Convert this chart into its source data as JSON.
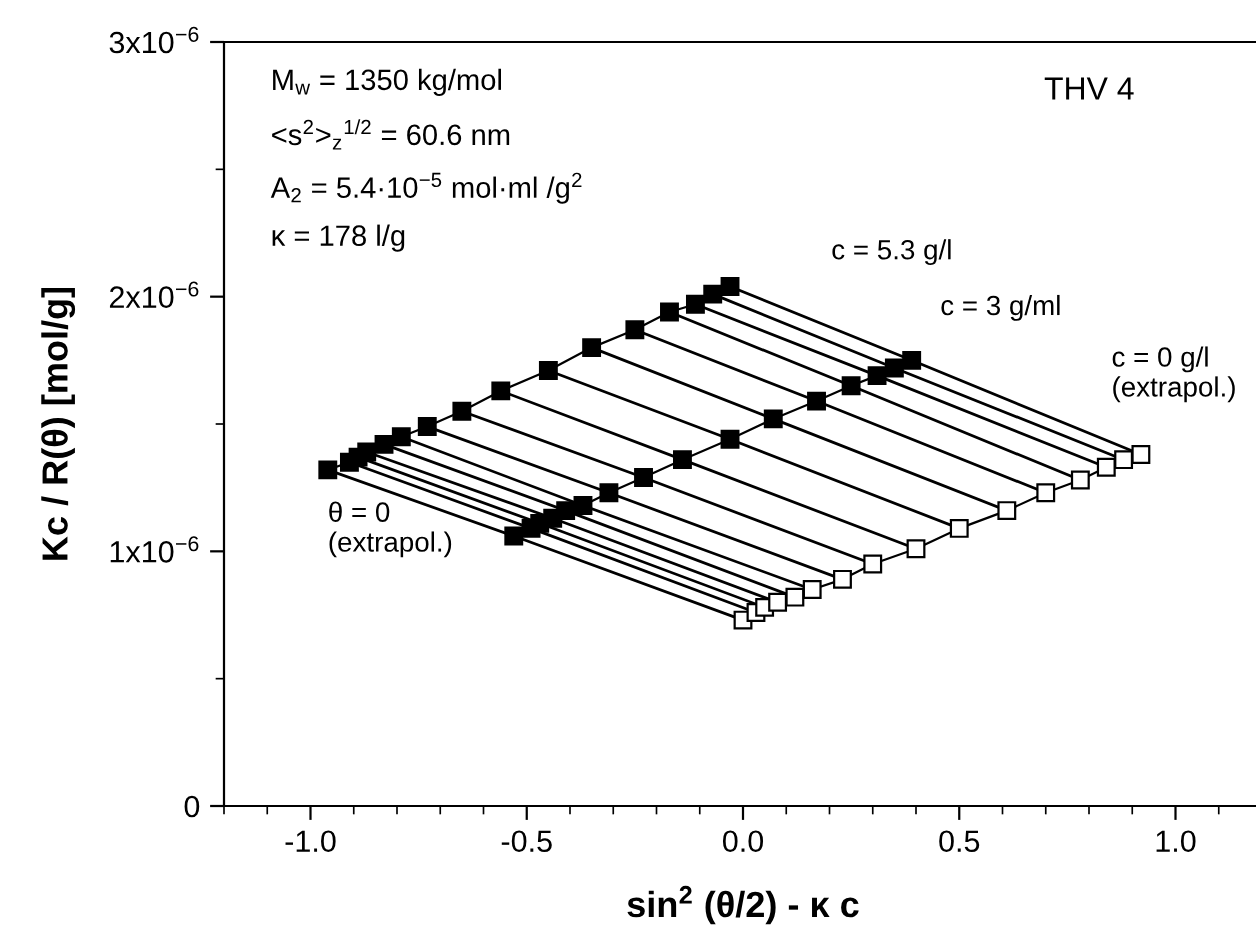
{
  "chart_data": {
    "type": "line",
    "xlabel": "sin$^{2}$ (θ/2) - κ c",
    "ylabel": "Kc / R(θ) [mol/g]",
    "xlim": [
      -1.2,
      1.2
    ],
    "xticks": [
      {
        "value": -1.0,
        "label": "-1.0"
      },
      {
        "value": -0.5,
        "label": "-0.5"
      },
      {
        "value": 0.0,
        "label": "0.0"
      },
      {
        "value": 0.5,
        "label": "0.5"
      },
      {
        "value": 1.0,
        "label": "1.0"
      }
    ],
    "ylim": [
      0,
      3e-06
    ],
    "yticks": [
      0,
      {
        "value": 1e-06,
        "label": "1x10$^{−6}$"
      },
      {
        "value": 2e-06,
        "label": "2x10$^{−6}$"
      },
      {
        "value": 3e-06,
        "label": "3x10$^{−6}$"
      }
    ],
    "series": [
      {
        "marker": "square",
        "color": "#000000",
        "x": [
          -0.96,
          -0.91,
          -0.89,
          -0.87,
          -0.83,
          -0.79,
          -0.73,
          -0.65,
          -0.56,
          -0.45,
          -0.35,
          -0.25,
          -0.17,
          -0.11,
          -0.07,
          -0.03
        ],
        "values": [
          1.32e-06,
          1.35e-06,
          1.37e-06,
          1.39e-06,
          1.42e-06,
          1.45e-06,
          1.49e-06,
          1.55e-06,
          1.63e-06,
          1.71e-06,
          1.8e-06,
          1.87e-06,
          1.94e-06,
          1.97e-06,
          2.01e-06,
          2.04e-06
        ]
      },
      {
        "marker": "square",
        "color": "#000000",
        "x": [
          -0.53,
          -0.49,
          -0.47,
          -0.44,
          -0.41,
          -0.37,
          -0.31,
          -0.23,
          -0.14,
          -0.03,
          0.07,
          0.17,
          0.25,
          0.31,
          0.35,
          0.39
        ],
        "values": [
          1.06e-06,
          1.09e-06,
          1.11e-06,
          1.13e-06,
          1.16e-06,
          1.18e-06,
          1.23e-06,
          1.29e-06,
          1.36e-06,
          1.44e-06,
          1.52e-06,
          1.59e-06,
          1.65e-06,
          1.69e-06,
          1.72e-06,
          1.75e-06
        ]
      },
      {
        "marker": "square",
        "color": "#ffffff",
        "x": [
          0.0,
          0.03,
          0.05,
          0.08,
          0.12,
          0.16,
          0.23,
          0.3,
          0.4,
          0.5,
          0.61,
          0.7,
          0.78,
          0.84,
          0.88,
          0.92
        ],
        "values": [
          7.3e-07,
          7.6e-07,
          7.8e-07,
          8e-07,
          8.2e-07,
          8.5e-07,
          8.9e-07,
          9.5e-07,
          1.01e-06,
          1.09e-06,
          1.16e-06,
          1.23e-06,
          1.28e-06,
          1.33e-06,
          1.36e-06,
          1.38e-06
        ]
      },
      {
        "marker": "none",
        "color": "#000000",
        "x": [
          -0.96,
          -0.53,
          0.0
        ],
        "values": [
          1.32e-06,
          1.06e-06,
          7.3e-07
        ]
      },
      {
        "marker": "none",
        "color": "#000000",
        "x": [
          -0.91,
          -0.49,
          0.03
        ],
        "values": [
          1.35e-06,
          1.09e-06,
          7.6e-07
        ]
      },
      {
        "marker": "none",
        "color": "#000000",
        "x": [
          -0.89,
          -0.47,
          0.05
        ],
        "values": [
          1.37e-06,
          1.11e-06,
          7.8e-07
        ]
      },
      {
        "marker": "none",
        "color": "#000000",
        "x": [
          -0.87,
          -0.44,
          0.08
        ],
        "values": [
          1.39e-06,
          1.13e-06,
          8e-07
        ]
      },
      {
        "marker": "none",
        "color": "#000000",
        "x": [
          -0.83,
          -0.41,
          0.12
        ],
        "values": [
          1.42e-06,
          1.16e-06,
          8.2e-07
        ]
      },
      {
        "marker": "none",
        "color": "#000000",
        "x": [
          -0.79,
          -0.37,
          0.16
        ],
        "values": [
          1.45e-06,
          1.18e-06,
          8.5e-07
        ]
      },
      {
        "marker": "none",
        "color": "#000000",
        "x": [
          -0.73,
          -0.31,
          0.23
        ],
        "values": [
          1.49e-06,
          1.23e-06,
          8.9e-07
        ]
      },
      {
        "marker": "none",
        "color": "#000000",
        "x": [
          -0.65,
          -0.23,
          0.3
        ],
        "values": [
          1.55e-06,
          1.29e-06,
          9.5e-07
        ]
      },
      {
        "marker": "none",
        "color": "#000000",
        "x": [
          -0.56,
          -0.14,
          0.4
        ],
        "values": [
          1.63e-06,
          1.36e-06,
          1.01e-06
        ]
      },
      {
        "marker": "none",
        "color": "#000000",
        "x": [
          -0.45,
          -0.03,
          0.5
        ],
        "values": [
          1.71e-06,
          1.44e-06,
          1.09e-06
        ]
      },
      {
        "marker": "none",
        "color": "#000000",
        "x": [
          -0.35,
          0.07,
          0.61
        ],
        "values": [
          1.8e-06,
          1.52e-06,
          1.16e-06
        ]
      },
      {
        "marker": "none",
        "color": "#000000",
        "x": [
          -0.25,
          0.17,
          0.7
        ],
        "values": [
          1.87e-06,
          1.59e-06,
          1.23e-06
        ]
      },
      {
        "marker": "none",
        "color": "#000000",
        "x": [
          -0.17,
          0.25,
          0.78
        ],
        "values": [
          1.94e-06,
          1.65e-06,
          1.28e-06
        ]
      },
      {
        "marker": "none",
        "color": "#000000",
        "x": [
          -0.11,
          0.31,
          0.84
        ],
        "values": [
          1.97e-06,
          1.69e-06,
          1.33e-06
        ]
      },
      {
        "marker": "none",
        "color": "#000000",
        "x": [
          -0.07,
          0.35,
          0.88
        ],
        "values": [
          2.01e-06,
          1.72e-06,
          1.36e-06
        ]
      },
      {
        "marker": "none",
        "color": "#000000",
        "x": [
          -0.03,
          0.39,
          0.92
        ],
        "values": [
          2.04e-06,
          1.75e-06,
          1.38e-06
        ]
      }
    ],
    "annotations": [
      "M$_{w}$ = 1350 kg/mol",
      "<s$^{2}$>$_{z}$$^{1/2}$ = 60.6 nm",
      "A$_{2}$ = 5.4·10$^{−5}$ mol·ml /g$^{2}$",
      "κ = 178 l/g",
      "THV 4",
      "c = 5.3 g/l",
      "c = 3 g/ml",
      "c = 0 g/l\n(extrapol.)",
      "θ = 0\n(extrapol.)"
    ]
  }
}
